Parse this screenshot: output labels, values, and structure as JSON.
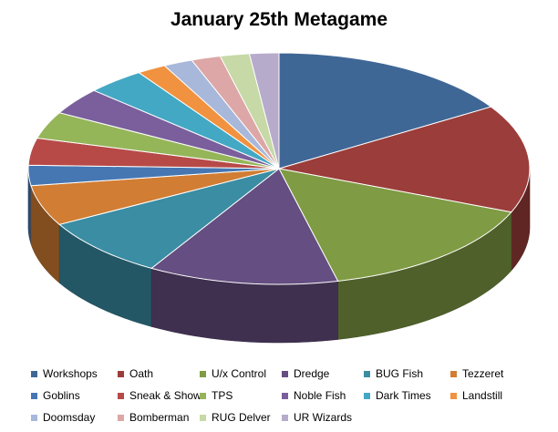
{
  "chart_data": {
    "type": "pie",
    "style": "3d",
    "title": "January 25th Metagame",
    "legend_position": "bottom",
    "slices": [
      {
        "label": "Workshops",
        "value": 17,
        "color": "#3F6796"
      },
      {
        "label": "Oath",
        "value": 16,
        "color": "#9B3D3A"
      },
      {
        "label": "U/x Control",
        "value": 16,
        "color": "#7F9B43"
      },
      {
        "label": "Dredge",
        "value": 13,
        "color": "#654E81"
      },
      {
        "label": "BUG Fish",
        "value": 9,
        "color": "#3A8DA3"
      },
      {
        "label": "Tezzeret",
        "value": 6,
        "color": "#D17D33"
      },
      {
        "label": "Goblins",
        "value": 3,
        "color": "#4677B3"
      },
      {
        "label": "Sneak & Show",
        "value": 4,
        "color": "#B74A47"
      },
      {
        "label": "TPS",
        "value": 4,
        "color": "#95B559"
      },
      {
        "label": "Noble Fish",
        "value": 4,
        "color": "#7A5F9C"
      },
      {
        "label": "Dark Times",
        "value": 4,
        "color": "#43A8C4"
      },
      {
        "label": "Landstill",
        "value": 2,
        "color": "#F0923F"
      },
      {
        "label": "Doomsday",
        "value": 2,
        "color": "#A8B8DA"
      },
      {
        "label": "Bomberman",
        "value": 2,
        "color": "#DCA7A6"
      },
      {
        "label": "RUG Delver",
        "value": 2,
        "color": "#C6D9A6"
      },
      {
        "label": "UR Wizards",
        "value": 2,
        "color": "#B7ABCB"
      }
    ]
  }
}
